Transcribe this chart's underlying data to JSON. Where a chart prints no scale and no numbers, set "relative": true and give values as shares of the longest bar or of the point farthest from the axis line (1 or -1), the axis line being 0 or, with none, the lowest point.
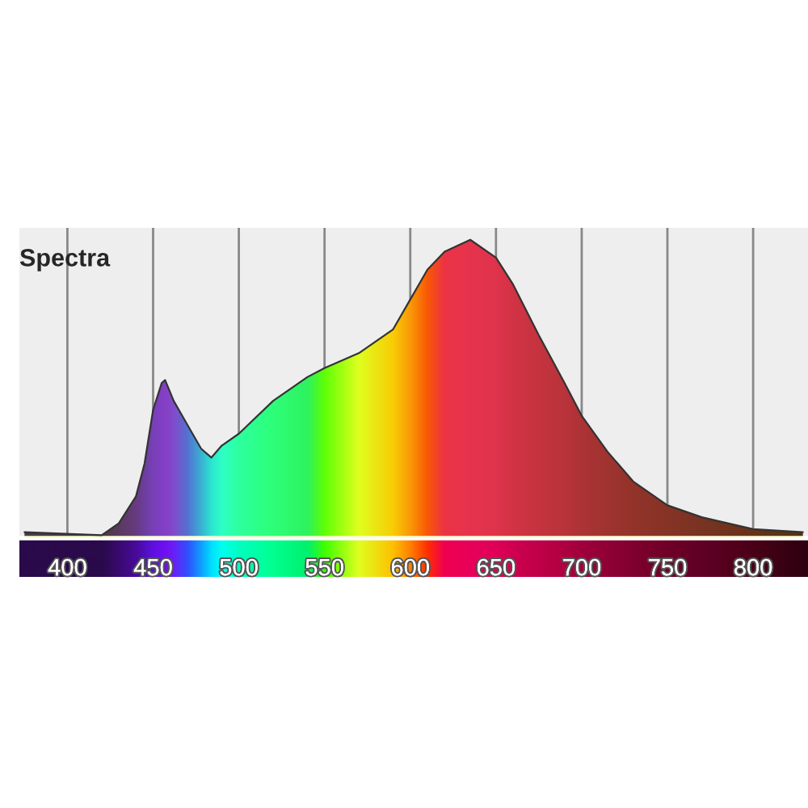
{
  "chart_data": {
    "type": "area",
    "title": "Spectra",
    "relative": true,
    "xlim": [
      372,
      832
    ],
    "xticks": [
      400,
      450,
      500,
      550,
      600,
      650,
      700,
      750,
      800
    ],
    "grid": "x",
    "series": [
      {
        "x": [
          375,
          420,
          430,
          440,
          445,
          450,
          455,
          457,
          462,
          470,
          478,
          484,
          490,
          500,
          520,
          540,
          550,
          570,
          590,
          600,
          610,
          620,
          635,
          650,
          660,
          675,
          690,
          700,
          715,
          730,
          750,
          770,
          800,
          829
        ],
        "values": [
          0.02,
          0.01,
          0.05,
          0.14,
          0.25,
          0.43,
          0.52,
          0.53,
          0.46,
          0.38,
          0.3,
          0.27,
          0.31,
          0.35,
          0.46,
          0.54,
          0.57,
          0.62,
          0.7,
          0.8,
          0.9,
          0.96,
          1.0,
          0.94,
          0.85,
          0.68,
          0.52,
          0.41,
          0.29,
          0.19,
          0.11,
          0.07,
          0.03,
          0.02
        ],
        "colors": [
          "#2a0a4a",
          "#2a0a4a",
          "#3a0a70",
          "#4a0a9a",
          "#5010c0",
          "#6010e0",
          "#6a10f0",
          "#7010f0",
          "#6a20f8",
          "#3050ff",
          "#10a0ff",
          "#00e0ff",
          "#00fff0",
          "#00ffc0",
          "#00ff90",
          "#00f070",
          "#40ff00",
          "#e0ff20",
          "#ffc000",
          "#ff8000",
          "#ff3000",
          "#f00050",
          "#e8005a",
          "#e00058",
          "#d00050",
          "#c00048",
          "#b00042",
          "#a0003c",
          "#900035",
          "#80002e",
          "#700028",
          "#600024",
          "#4a0018",
          "#300010"
        ]
      }
    ]
  }
}
